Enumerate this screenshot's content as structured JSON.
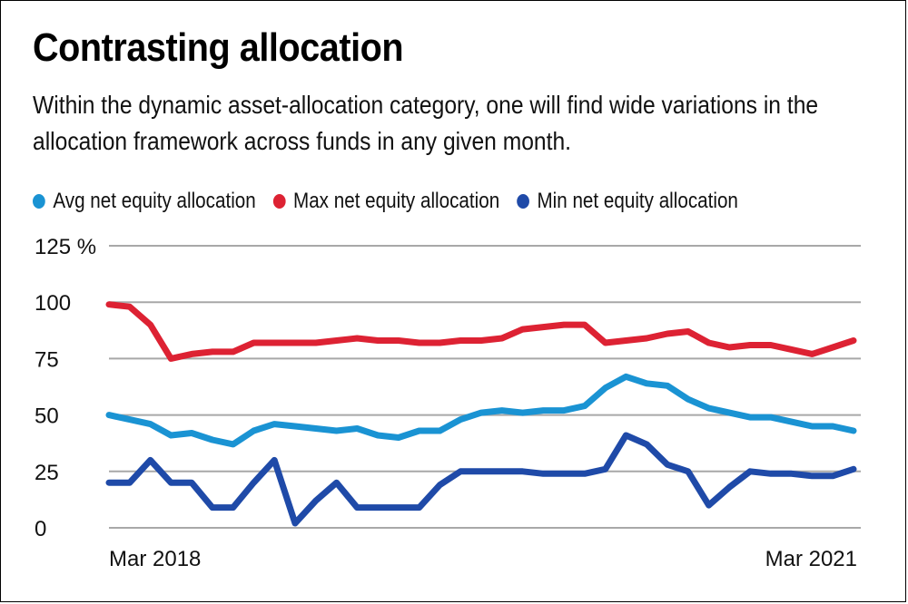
{
  "title": "Contrasting allocation",
  "subtitle": "Within the dynamic asset-allocation category, one will find wide variations in the allocation framework across funds in any given month.",
  "chart_data": {
    "type": "line",
    "x": [
      "Mar 2018",
      "",
      "",
      "",
      "",
      "",
      "",
      "",
      "",
      "",
      "",
      "",
      "",
      "",
      "",
      "",
      "",
      "",
      "",
      "",
      "",
      "",
      "",
      "",
      "",
      "",
      "",
      "",
      "",
      "",
      "",
      "",
      "",
      "",
      "",
      "",
      "Mar 2021"
    ],
    "x_tick_labels": [
      "Mar 2018",
      "Mar 2021"
    ],
    "ylim": [
      0,
      125
    ],
    "y_ticks": [
      0,
      25,
      50,
      75,
      100,
      125
    ],
    "y_tick_labels": [
      "0",
      "25",
      "50",
      "75",
      "100",
      "125 %"
    ],
    "grid": true,
    "legend_position": "top",
    "series": [
      {
        "name": "Avg net equity allocation",
        "color": "#1a93d3",
        "values": [
          50,
          48,
          46,
          41,
          42,
          39,
          37,
          43,
          46,
          45,
          44,
          43,
          44,
          41,
          40,
          43,
          43,
          48,
          51,
          52,
          51,
          52,
          52,
          54,
          62,
          67,
          64,
          63,
          57,
          53,
          51,
          49,
          49,
          47,
          45,
          45,
          43
        ]
      },
      {
        "name": "Max net equity allocation",
        "color": "#dd2233",
        "values": [
          99,
          98,
          90,
          75,
          77,
          78,
          78,
          82,
          82,
          82,
          82,
          83,
          84,
          83,
          83,
          82,
          82,
          83,
          83,
          84,
          88,
          89,
          90,
          90,
          82,
          83,
          84,
          86,
          87,
          82,
          80,
          81,
          81,
          79,
          77,
          80,
          83
        ]
      },
      {
        "name": "Min net equity allocation",
        "color": "#1f4aa8",
        "values": [
          20,
          20,
          30,
          20,
          20,
          9,
          9,
          20,
          30,
          2,
          12,
          20,
          9,
          9,
          9,
          9,
          19,
          25,
          25,
          25,
          25,
          24,
          24,
          24,
          26,
          41,
          37,
          28,
          25,
          10,
          18,
          25,
          24,
          24,
          23,
          23,
          26
        ]
      }
    ]
  }
}
